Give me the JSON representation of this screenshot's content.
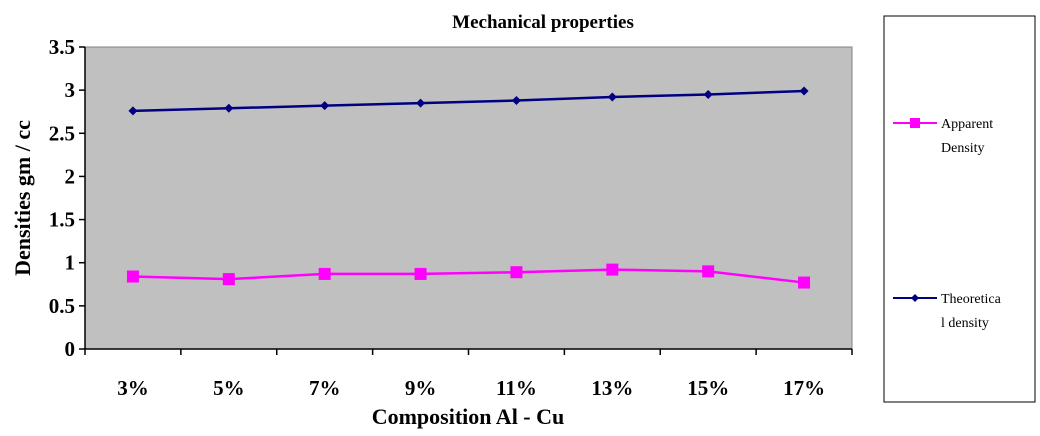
{
  "chart_data": {
    "type": "line",
    "title": "Mechanical properties",
    "xlabel": "Composition Al - Cu",
    "ylabel": "Densities gm / cc",
    "categories": [
      "3%",
      "5%",
      "7%",
      "9%",
      "11%",
      "13%",
      "15%",
      "17%"
    ],
    "ylim": [
      0,
      3.5
    ],
    "yticks": [
      "0",
      "0.5",
      "1",
      "1.5",
      "2",
      "2.5",
      "3",
      "3.5"
    ],
    "grid": false,
    "legend_position": "right",
    "series": [
      {
        "name_lines": [
          "Apparent",
          "Density"
        ],
        "values": [
          0.84,
          0.81,
          0.87,
          0.87,
          0.89,
          0.92,
          0.9,
          0.77
        ],
        "color": "#ff00ff",
        "marker": "square"
      },
      {
        "name_lines": [
          "Theoretica",
          "l density"
        ],
        "values": [
          2.76,
          2.79,
          2.82,
          2.85,
          2.88,
          2.92,
          2.95,
          2.99
        ],
        "color": "#000080",
        "marker": "diamond"
      }
    ],
    "plot_background": "#c0c0c0"
  }
}
